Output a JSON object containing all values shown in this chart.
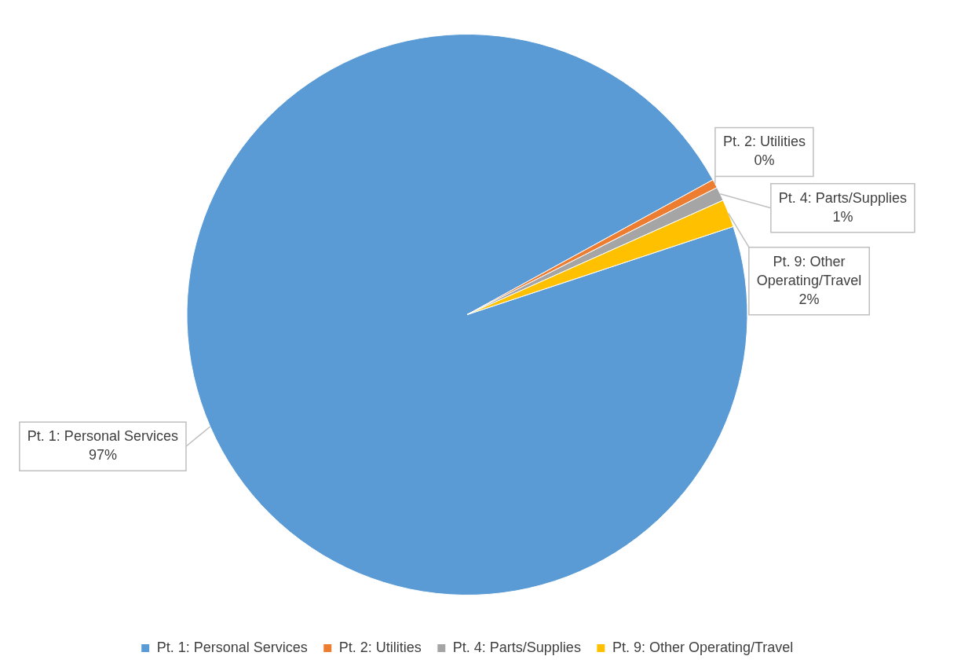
{
  "chart_data": {
    "type": "pie",
    "categories": [
      "Pt. 1: Personal Services",
      "Pt. 2: Utilities",
      "Pt. 4: Parts/Supplies",
      "Pt. 9: Other Operating/Travel"
    ],
    "values": [
      97.1,
      0.5,
      0.8,
      1.6
    ],
    "value_labels": [
      "97%",
      "0%",
      "1%",
      "2%"
    ],
    "colors": [
      "#5b9bd5",
      "#ed7d31",
      "#a5a5a5",
      "#ffc000"
    ],
    "legend": "bottom"
  }
}
